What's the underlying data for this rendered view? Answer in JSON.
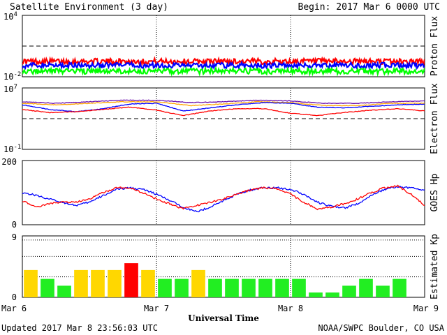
{
  "header": {
    "title": "Satellite Environment (3 day)",
    "begin": "Begin:  2017 Mar 6 0000 UTC"
  },
  "footer": {
    "updated": "Updated 2017 Mar  8 23:56:03 UTC",
    "credit": "NOAA/SWPC Boulder, CO USA"
  },
  "x_axis": {
    "label": "Universal Time",
    "ticks": [
      "Mar 6",
      "Mar 7",
      "Mar 8",
      "Mar 9"
    ],
    "range_days": [
      0,
      3
    ]
  },
  "colors": {
    "red": "#ff0000",
    "blue": "#0000ff",
    "green": "#00ff00",
    "orange": "#ffa500",
    "purple": "#6a0dad",
    "kp_green": "#22ee22",
    "kp_yellow": "#ffd700",
    "kp_red": "#ff0000"
  },
  "chart_data": [
    {
      "id": "proton",
      "type": "line",
      "ylabel": "Proton Flux",
      "scale": "log",
      "ylim": [
        0.01,
        10000
      ],
      "tick_labels": [
        {
          "value": 10000,
          "mantissa": "10",
          "exp": "4"
        },
        {
          "value": 0.01,
          "mantissa": "10",
          "exp": "-2"
        }
      ],
      "threshold": 10,
      "series": [
        {
          "color": "red",
          "level": 0.32
        },
        {
          "color": "blue",
          "level": 0.13
        },
        {
          "color": "green",
          "level": 0.035
        }
      ]
    },
    {
      "id": "electron",
      "type": "line",
      "ylabel": "Electron Flux",
      "scale": "log",
      "ylim": [
        0.1,
        10000000
      ],
      "tick_labels": [
        {
          "value": 10000000,
          "mantissa": "10",
          "exp": "7"
        },
        {
          "value": 0.1,
          "mantissa": "10",
          "exp": "-1"
        }
      ],
      "threshold": 1000,
      "series": [
        {
          "color": "purple",
          "x": [
            0,
            0.25,
            0.5,
            0.75,
            1,
            1.25,
            1.5,
            1.75,
            2,
            2.25,
            2.5,
            2.75,
            3
          ],
          "y": [
            5.2,
            5.0,
            5.2,
            5.4,
            5.4,
            5.1,
            5.2,
            5.4,
            5.3,
            5.0,
            5.0,
            5.2,
            5.3
          ]
        },
        {
          "color": "orange",
          "x": [
            0,
            0.25,
            0.5,
            0.75,
            1,
            1.25,
            1.5,
            1.75,
            2,
            2.25,
            2.5,
            2.75,
            3
          ],
          "y": [
            5.0,
            4.8,
            5.0,
            5.2,
            5.2,
            4.7,
            4.9,
            5.2,
            5.1,
            4.7,
            4.7,
            5.0,
            5.0
          ]
        },
        {
          "color": "blue",
          "x": [
            0,
            0.2,
            0.4,
            0.6,
            0.8,
            1,
            1.2,
            1.4,
            1.6,
            1.8,
            2,
            2.2,
            2.4,
            2.6,
            2.8,
            3
          ],
          "y": [
            4.8,
            4.2,
            3.9,
            4.3,
            4.9,
            5.0,
            4.0,
            4.4,
            4.8,
            5.1,
            5.0,
            4.5,
            4.4,
            4.6,
            4.8,
            4.9
          ]
        },
        {
          "color": "red",
          "x": [
            0,
            0.2,
            0.4,
            0.6,
            0.8,
            1,
            1.2,
            1.4,
            1.6,
            1.8,
            2,
            2.2,
            2.4,
            2.6,
            2.8,
            3
          ],
          "y": [
            4.2,
            3.8,
            3.9,
            4.2,
            4.5,
            4.1,
            3.4,
            4.0,
            4.3,
            4.3,
            3.7,
            3.4,
            3.8,
            4.1,
            4.3,
            4.0
          ]
        }
      ]
    },
    {
      "id": "hp",
      "type": "line",
      "ylabel": "GOES Hp",
      "scale": "linear",
      "ylim": [
        0,
        200
      ],
      "tick_labels": [
        {
          "value": 200,
          "text": "200"
        },
        {
          "value": 0,
          "text": "0"
        }
      ],
      "series": [
        {
          "color": "blue",
          "x": [
            0,
            0.1,
            0.2,
            0.3,
            0.4,
            0.5,
            0.6,
            0.7,
            0.8,
            0.9,
            1.0,
            1.1,
            1.2,
            1.3,
            1.4,
            1.5,
            1.6,
            1.7,
            1.8,
            1.9,
            2.0,
            2.1,
            2.2,
            2.3,
            2.4,
            2.5,
            2.6,
            2.7,
            2.8,
            2.9,
            3.0
          ],
          "y": [
            100,
            92,
            80,
            70,
            60,
            70,
            90,
            110,
            115,
            110,
            95,
            75,
            55,
            40,
            55,
            75,
            95,
            108,
            116,
            115,
            110,
            95,
            70,
            58,
            52,
            65,
            90,
            110,
            118,
            115,
            108
          ]
        },
        {
          "color": "red",
          "x": [
            0,
            0.1,
            0.2,
            0.3,
            0.4,
            0.5,
            0.6,
            0.7,
            0.8,
            0.9,
            1.0,
            1.1,
            1.2,
            1.3,
            1.4,
            1.5,
            1.6,
            1.7,
            1.8,
            1.9,
            2.0,
            2.1,
            2.2,
            2.3,
            2.4,
            2.5,
            2.6,
            2.7,
            2.8,
            2.9,
            3.0
          ],
          "y": [
            75,
            55,
            65,
            70,
            70,
            80,
            100,
            115,
            115,
            100,
            80,
            65,
            50,
            60,
            70,
            80,
            95,
            108,
            115,
            112,
            95,
            70,
            50,
            55,
            65,
            80,
            100,
            115,
            120,
            95,
            60
          ]
        }
      ]
    },
    {
      "id": "kp",
      "type": "bar",
      "ylabel": "Estimated Kp",
      "ylim": [
        0,
        9
      ],
      "tick_labels": [
        {
          "value": 9,
          "text": "9"
        },
        {
          "value": 0,
          "text": "0"
        }
      ],
      "values": [
        4,
        2.7,
        1.7,
        4,
        4,
        4,
        5,
        4,
        2.7,
        2.7,
        4,
        2.7,
        2.7,
        2.7,
        2.7,
        2.7,
        2.7,
        0.7,
        0.7,
        1.7,
        2.7,
        1.7,
        2.7,
        0
      ],
      "colors": [
        "kp_yellow",
        "kp_green",
        "kp_green",
        "kp_yellow",
        "kp_yellow",
        "kp_yellow",
        "kp_red",
        "kp_yellow",
        "kp_green",
        "kp_green",
        "kp_yellow",
        "kp_green",
        "kp_green",
        "kp_green",
        "kp_green",
        "kp_green",
        "kp_green",
        "kp_green",
        "kp_green",
        "kp_green",
        "kp_green",
        "kp_green",
        "kp_green",
        "kp_green"
      ]
    }
  ]
}
